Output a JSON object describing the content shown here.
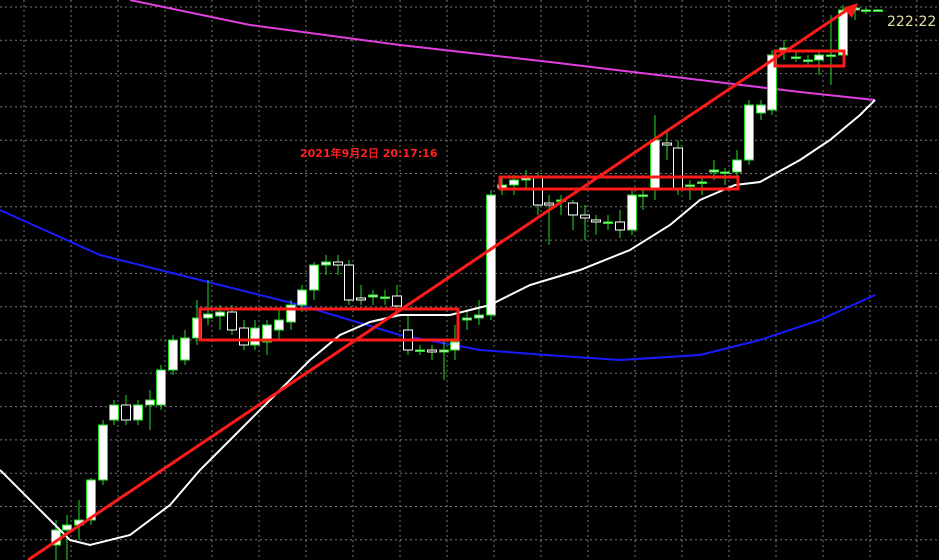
{
  "annotation": {
    "timestamp": "2021年9月2日 20:17:16"
  },
  "price_label": "222:22"
}
